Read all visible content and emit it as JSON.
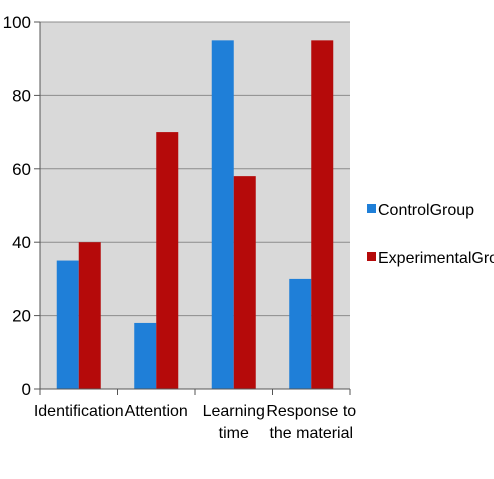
{
  "chart_data": {
    "type": "bar",
    "categories": [
      [
        "Identification"
      ],
      [
        "Attention"
      ],
      [
        "Learning",
        "time"
      ],
      [
        "Response to",
        "the material"
      ]
    ],
    "series": [
      {
        "name": "ControlGroup",
        "color": "#1f7fd8",
        "values": [
          35,
          18,
          95,
          30
        ]
      },
      {
        "name": "ExperimentalGroup",
        "color": "#b50a0a",
        "values": [
          40,
          70,
          58,
          95
        ]
      }
    ],
    "ylim": [
      0,
      100
    ],
    "yticks": [
      0,
      20,
      40,
      60,
      80,
      100
    ],
    "grid": true,
    "legend_position": "right",
    "plot_background": "#d9d9d9"
  }
}
